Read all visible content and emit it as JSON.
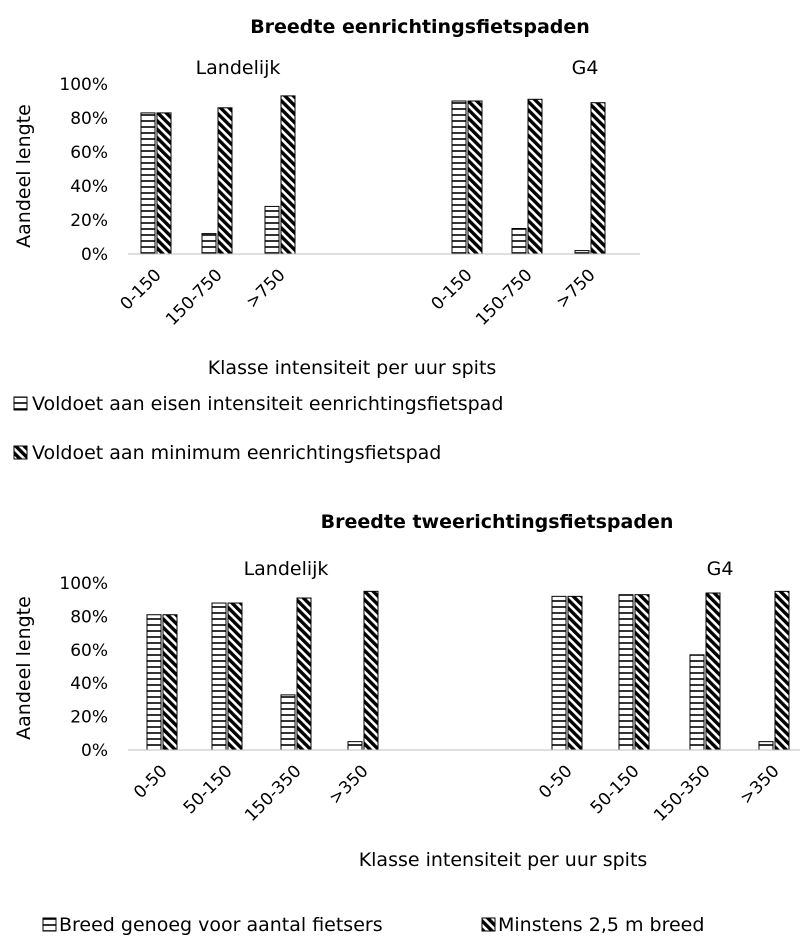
{
  "chart_data": [
    {
      "type": "bar",
      "title": "Breedte eenrichtingsfietspaden",
      "ylabel": "Aandeel lengte",
      "xlabel": "Klasse intensiteit per uur spits",
      "ylim": [
        0,
        100
      ],
      "yticks": [
        "0%",
        "20%",
        "40%",
        "60%",
        "80%",
        "100%"
      ],
      "grid": false,
      "groups": [
        {
          "name": "Landelijk",
          "categories": [
            "0-150",
            "150-750",
            ">750"
          ]
        },
        {
          "name": "G4",
          "categories": [
            "0-150",
            "150-750",
            ">750"
          ]
        }
      ],
      "series": [
        {
          "name": "Voldoet aan eisen intensiteit eenrichtingsfietspad",
          "pattern": "horizontal-lines",
          "values": [
            [
              83,
              12,
              28
            ],
            [
              90,
              15,
              2
            ]
          ]
        },
        {
          "name": "Voldoet aan minimum eenrichtingsfietspad",
          "pattern": "diagonal-hatch",
          "values": [
            [
              83,
              86,
              93
            ],
            [
              90,
              91,
              89
            ]
          ]
        }
      ],
      "legend_position": "bottom-left"
    },
    {
      "type": "bar",
      "title": "Breedte tweerichtingsfietspaden",
      "ylabel": "Aandeel lengte",
      "xlabel": "Klasse intensiteit per uur spits",
      "ylim": [
        0,
        100
      ],
      "yticks": [
        "0%",
        "20%",
        "40%",
        "60%",
        "80%",
        "100%"
      ],
      "grid": false,
      "groups": [
        {
          "name": "Landelijk",
          "categories": [
            "0-50",
            "50-150",
            "150-350",
            ">350"
          ]
        },
        {
          "name": "G4",
          "categories": [
            "0-50",
            "50-150",
            "150-350",
            ">350"
          ]
        }
      ],
      "series": [
        {
          "name": "Breed genoeg voor aantal fietsers",
          "pattern": "horizontal-lines",
          "values": [
            [
              81,
              88,
              33,
              5
            ],
            [
              92,
              93,
              57,
              5
            ]
          ]
        },
        {
          "name": "Minstens 2,5 m breed",
          "pattern": "diagonal-hatch",
          "values": [
            [
              81,
              88,
              91,
              95
            ],
            [
              92,
              93,
              94,
              95
            ]
          ]
        }
      ],
      "legend_position": "bottom"
    }
  ]
}
